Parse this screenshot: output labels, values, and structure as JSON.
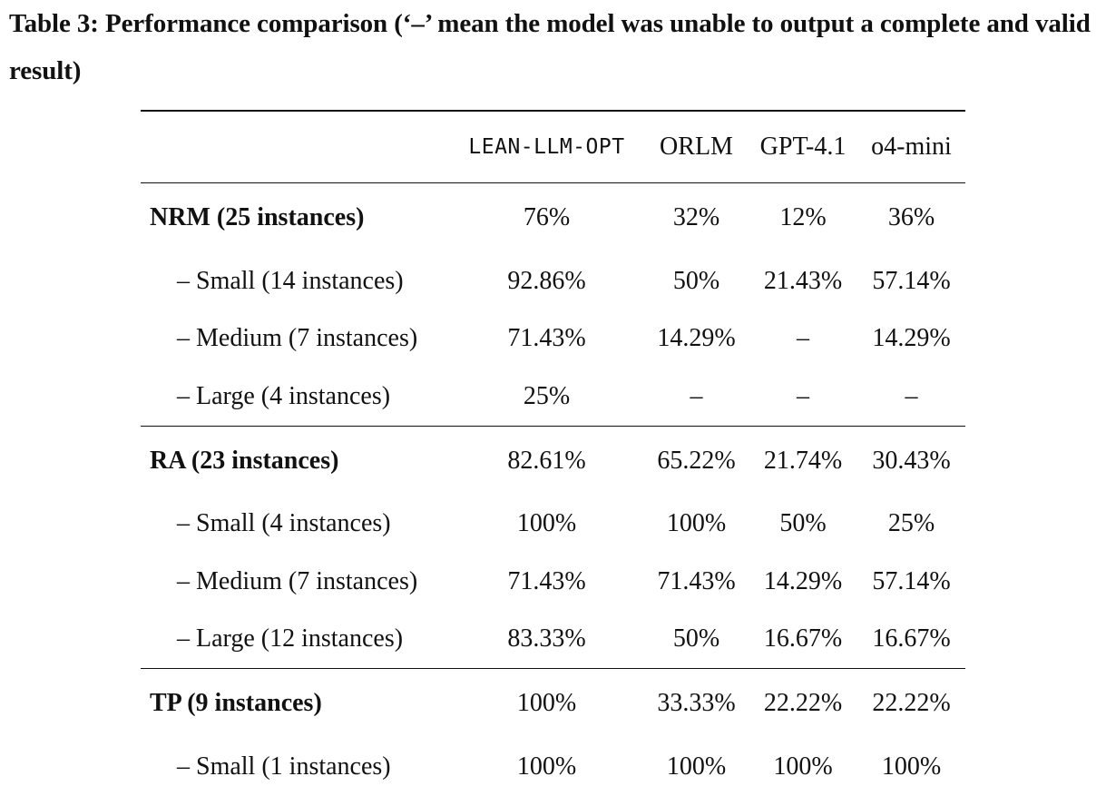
{
  "caption": "Table 3: Performance comparison (‘–’ mean the model was unable to output a complete and valid result)",
  "columns": [
    "LEAN-LLM-OPT",
    "ORLM",
    "GPT-4.1",
    "o4-mini"
  ],
  "groups": [
    {
      "label": "NRM (25 instances)",
      "values": [
        "76%",
        "32%",
        "12%",
        "36%"
      ],
      "rows": [
        {
          "label": "– Small (14 instances)",
          "values": [
            "92.86%",
            "50%",
            "21.43%",
            "57.14%"
          ]
        },
        {
          "label": "– Medium (7 instances)",
          "values": [
            "71.43%",
            "14.29%",
            "–",
            "14.29%"
          ]
        },
        {
          "label": "– Large (4 instances)",
          "values": [
            "25%",
            "–",
            "–",
            "–"
          ]
        }
      ]
    },
    {
      "label": "RA (23 instances)",
      "values": [
        "82.61%",
        "65.22%",
        "21.74%",
        "30.43%"
      ],
      "rows": [
        {
          "label": "– Small (4 instances)",
          "values": [
            "100%",
            "100%",
            "50%",
            "25%"
          ]
        },
        {
          "label": "– Medium (7 instances)",
          "values": [
            "71.43%",
            "71.43%",
            "14.29%",
            "57.14%"
          ]
        },
        {
          "label": "– Large (12 instances)",
          "values": [
            "83.33%",
            "50%",
            "16.67%",
            "16.67%"
          ]
        }
      ]
    },
    {
      "label": "TP (9 instances)",
      "values": [
        "100%",
        "33.33%",
        "22.22%",
        "22.22%"
      ],
      "rows": [
        {
          "label": "– Small (1 instances)",
          "values": [
            "100%",
            "100%",
            "100%",
            "100%"
          ]
        }
      ]
    }
  ]
}
